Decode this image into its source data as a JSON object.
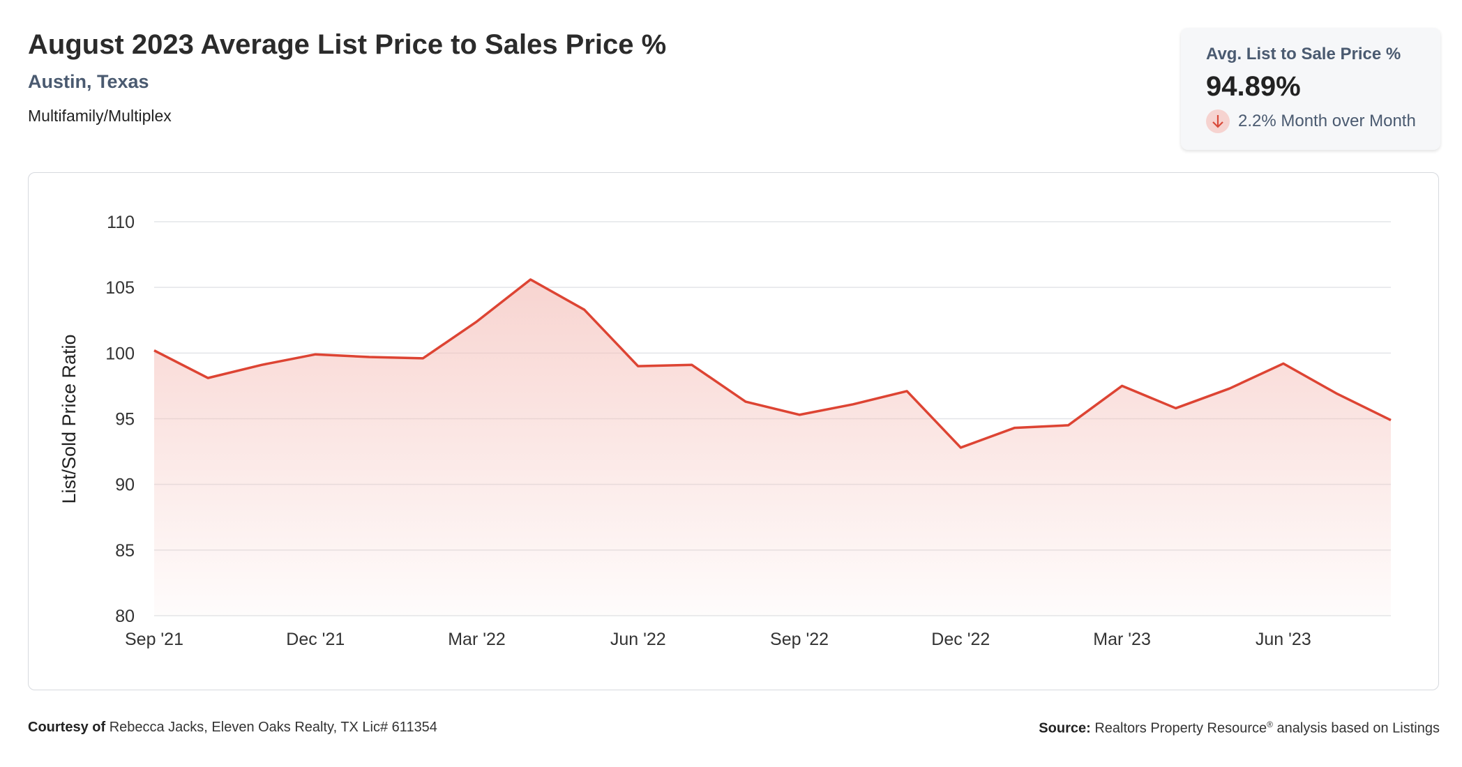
{
  "header": {
    "title": "August 2023 Average List Price to Sales Price %",
    "location": "Austin, Texas",
    "category": "Multifamily/Multiplex"
  },
  "stat_card": {
    "label": "Avg. List to Sale Price %",
    "value": "94.89%",
    "change_text": "2.2% Month over Month",
    "change_direction": "down",
    "change_icon": "arrow-down-icon"
  },
  "footer": {
    "courtesy_label": "Courtesy of",
    "courtesy_text": "Rebecca Jacks, Eleven Oaks Realty, TX Lic# 611354",
    "source_label": "Source:",
    "source_text": "Realtors Property Resource",
    "source_mark": "®",
    "source_suffix": "analysis based on Listings"
  },
  "colors": {
    "line": "#dd4433",
    "fill": "#f4bdb7",
    "grid": "#e3e5e8",
    "axis_text": "#333333",
    "down_badge": "#f6d3d0",
    "down_arrow": "#d94a3a"
  },
  "chart_data": {
    "type": "area",
    "ylabel": "List/Sold Price Ratio",
    "ylim": [
      80,
      110
    ],
    "yticks": [
      80,
      85,
      90,
      95,
      100,
      105,
      110
    ],
    "xtick_labels": [
      "Sep '21",
      "Dec '21",
      "Mar '22",
      "Jun '22",
      "Sep '22",
      "Dec '22",
      "Mar '23",
      "Jun '23"
    ],
    "xtick_indices": [
      0,
      3,
      6,
      9,
      12,
      15,
      18,
      21
    ],
    "x": [
      "Sep '21",
      "Oct '21",
      "Nov '21",
      "Dec '21",
      "Jan '22",
      "Feb '22",
      "Mar '22",
      "Apr '22",
      "May '22",
      "Jun '22",
      "Jul '22",
      "Aug '22",
      "Sep '22",
      "Oct '22",
      "Nov '22",
      "Dec '22",
      "Jan '23",
      "Feb '23",
      "Mar '23",
      "Apr '23",
      "May '23",
      "Jun '23",
      "Jul '23",
      "Aug '23"
    ],
    "values": [
      100.2,
      98.1,
      99.1,
      99.9,
      99.7,
      99.6,
      102.4,
      105.6,
      103.3,
      99.0,
      99.1,
      96.3,
      95.3,
      96.1,
      97.1,
      92.8,
      94.3,
      94.5,
      97.5,
      95.8,
      97.3,
      99.2,
      96.9,
      94.89
    ],
    "grid": true,
    "legend": "none"
  }
}
